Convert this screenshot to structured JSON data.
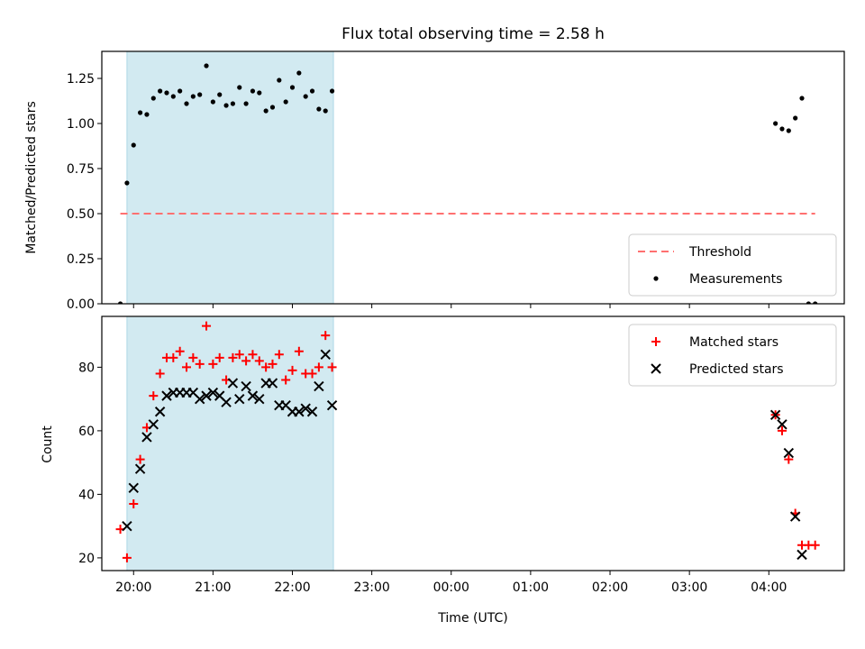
{
  "title": "Flux total observing time = 2.58 h",
  "xlabel": "Time (UTC)",
  "x_ticks": [
    "20:00",
    "21:00",
    "22:00",
    "23:00",
    "00:00",
    "01:00",
    "02:00",
    "03:00",
    "04:00"
  ],
  "chart_data": [
    {
      "type": "scatter",
      "ylabel": "Matched/Predicted stars",
      "xlim": [
        "19:36",
        "04:57"
      ],
      "ylim": [
        0,
        1.4
      ],
      "y_ticks": [
        "0.00",
        "0.25",
        "0.50",
        "0.75",
        "1.00",
        "1.25"
      ],
      "y_tick_values": [
        0,
        0.25,
        0.5,
        0.75,
        1.0,
        1.25
      ],
      "shaded_interval": {
        "start": "19:55",
        "end": "22:31",
        "color": "#add8e6"
      },
      "legend": {
        "placement": "lower right"
      },
      "series": [
        {
          "name": "Threshold",
          "kind": "dashed-line",
          "color": "#ff7070",
          "x": [
            "19:50",
            "04:35"
          ],
          "y": [
            0.5,
            0.5
          ]
        },
        {
          "name": "Measurements",
          "kind": "dot",
          "color": "#000000",
          "x": [
            "19:50",
            "19:55",
            "20:00",
            "20:05",
            "20:10",
            "20:15",
            "20:20",
            "20:25",
            "20:30",
            "20:35",
            "20:40",
            "20:45",
            "20:50",
            "20:55",
            "21:00",
            "21:05",
            "21:10",
            "21:15",
            "21:20",
            "21:25",
            "21:30",
            "21:35",
            "21:40",
            "21:45",
            "21:50",
            "21:55",
            "22:00",
            "22:05",
            "22:10",
            "22:15",
            "22:20",
            "22:25",
            "22:30",
            "04:05",
            "04:10",
            "04:15",
            "04:20",
            "04:25",
            "04:30",
            "04:35"
          ],
          "y": [
            0.0,
            0.67,
            0.88,
            1.06,
            1.05,
            1.14,
            1.18,
            1.17,
            1.15,
            1.18,
            1.11,
            1.15,
            1.16,
            1.32,
            1.12,
            1.16,
            1.1,
            1.11,
            1.2,
            1.11,
            1.18,
            1.17,
            1.07,
            1.09,
            1.24,
            1.12,
            1.2,
            1.28,
            1.15,
            1.18,
            1.08,
            1.07,
            1.18,
            1.0,
            0.97,
            0.96,
            1.03,
            1.14,
            0.0,
            0.0
          ]
        }
      ]
    },
    {
      "type": "scatter",
      "ylabel": "Count",
      "xlim": [
        "19:36",
        "04:57"
      ],
      "ylim": [
        16,
        96
      ],
      "y_ticks": [
        "20",
        "40",
        "60",
        "80"
      ],
      "y_tick_values": [
        20,
        40,
        60,
        80
      ],
      "shaded_interval": {
        "start": "19:55",
        "end": "22:31",
        "color": "#add8e6"
      },
      "legend": {
        "placement": "upper right"
      },
      "series": [
        {
          "name": "Matched stars",
          "kind": "plus",
          "color": "#ff0000",
          "x": [
            "19:50",
            "19:55",
            "20:00",
            "20:05",
            "20:10",
            "20:15",
            "20:20",
            "20:25",
            "20:30",
            "20:35",
            "20:40",
            "20:45",
            "20:50",
            "20:55",
            "21:00",
            "21:05",
            "21:10",
            "21:15",
            "21:20",
            "21:25",
            "21:30",
            "21:35",
            "21:40",
            "21:45",
            "21:50",
            "21:55",
            "22:00",
            "22:05",
            "22:10",
            "22:15",
            "22:20",
            "22:25",
            "22:30",
            "04:05",
            "04:10",
            "04:15",
            "04:20",
            "04:25",
            "04:30",
            "04:35"
          ],
          "y": [
            29,
            20,
            37,
            51,
            61,
            71,
            78,
            83,
            83,
            85,
            80,
            83,
            81,
            93,
            81,
            83,
            76,
            83,
            84,
            82,
            84,
            82,
            80,
            81,
            84,
            76,
            79,
            85,
            78,
            78,
            80,
            90,
            80,
            65,
            60,
            51,
            34,
            24,
            24,
            24
          ]
        },
        {
          "name": "Predicted stars",
          "kind": "x",
          "color": "#000000",
          "x": [
            "19:55",
            "20:00",
            "20:05",
            "20:10",
            "20:15",
            "20:20",
            "20:25",
            "20:30",
            "20:35",
            "20:40",
            "20:45",
            "20:50",
            "20:55",
            "21:00",
            "21:05",
            "21:10",
            "21:15",
            "21:20",
            "21:25",
            "21:30",
            "21:35",
            "21:40",
            "21:45",
            "21:50",
            "21:55",
            "22:00",
            "22:05",
            "22:10",
            "22:15",
            "22:20",
            "22:25",
            "22:30",
            "04:05",
            "04:10",
            "04:15",
            "04:20",
            "04:25"
          ],
          "y": [
            30,
            42,
            48,
            58,
            62,
            66,
            71,
            72,
            72,
            72,
            72,
            70,
            71,
            72,
            71,
            69,
            75,
            70,
            74,
            71,
            70,
            75,
            75,
            68,
            68,
            66,
            66,
            67,
            66,
            74,
            84,
            68,
            65,
            62,
            53,
            33,
            21
          ]
        }
      ]
    }
  ]
}
